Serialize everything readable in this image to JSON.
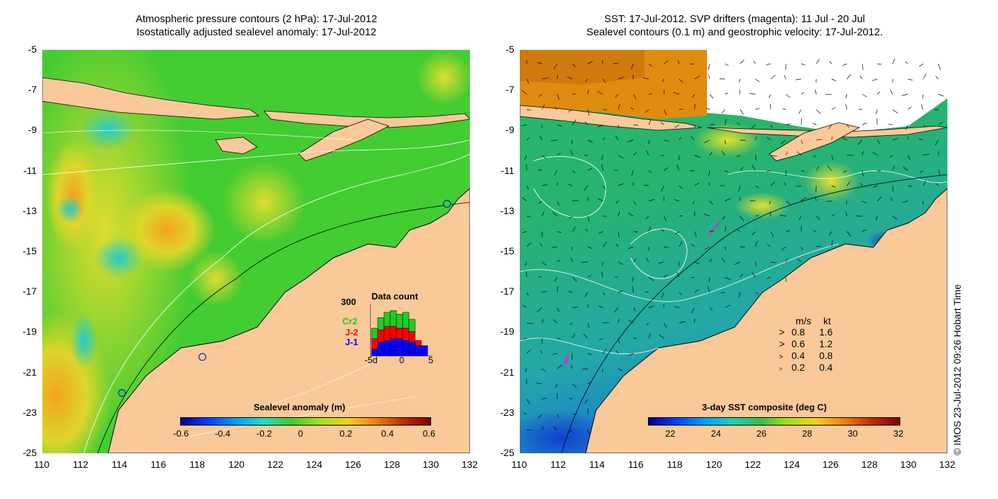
{
  "left_panel": {
    "title_line1": "Atmospheric pressure contours (2 hPa): 17-Jul-2012",
    "title_line2": "Isostatically adjusted sealevel anomaly: 17-Jul-2012",
    "x_ticks": [
      "110",
      "112",
      "114",
      "116",
      "118",
      "120",
      "122",
      "124",
      "126",
      "128",
      "130",
      "132"
    ],
    "y_ticks": [
      "-5",
      "-7",
      "-9",
      "-11",
      "-13",
      "-15",
      "-17",
      "-19",
      "-21",
      "-23",
      "-25"
    ],
    "colorbar": {
      "label": "Sealevel anomaly (m)",
      "ticks": [
        "-0.6",
        "-0.4",
        "-0.2",
        "0",
        "0.2",
        "0.4",
        "0.6"
      ],
      "range": [
        -0.6,
        0.6
      ]
    },
    "data_count": {
      "title": "Data count",
      "ymax_label": "300",
      "series_labels": [
        "Cr2",
        "J-2",
        "J-1"
      ],
      "series_colors": [
        "#22cc22",
        "#ff0000",
        "#0000ff"
      ],
      "x_ticks": [
        "-5d",
        "0",
        "5"
      ],
      "bars": [
        {
          "j1": 40,
          "j2": 60,
          "cr2": 60
        },
        {
          "j1": 80,
          "j2": 70,
          "cr2": 70
        },
        {
          "j1": 90,
          "j2": 80,
          "cr2": 80
        },
        {
          "j1": 100,
          "j2": 70,
          "cr2": 90
        },
        {
          "j1": 100,
          "j2": 60,
          "cr2": 80
        },
        {
          "j1": 90,
          "j2": 70,
          "cr2": 90
        },
        {
          "j1": 80,
          "j2": 60,
          "cr2": 70
        },
        {
          "j1": 60,
          "j2": 30,
          "cr2": 0
        },
        {
          "j1": 60,
          "j2": 0,
          "cr2": 0
        }
      ]
    }
  },
  "right_panel": {
    "title_line1": "SST: 17-Jul-2012. SVP drifters (magenta): 11 Jul - 20 Jul",
    "title_line2": "Sealevel contours (0.1 m) and geostrophic velocity: 17-Jul-2012.",
    "x_ticks": [
      "110",
      "112",
      "114",
      "116",
      "118",
      "120",
      "122",
      "124",
      "126",
      "128",
      "130",
      "132"
    ],
    "y_ticks": [
      "-5",
      "-7",
      "-9",
      "-11",
      "-13",
      "-15",
      "-17",
      "-19",
      "-21",
      "-23",
      "-25"
    ],
    "colorbar": {
      "label": "3-day SST composite (deg C)",
      "ticks": [
        "22",
        "24",
        "26",
        "28",
        "30",
        "32"
      ],
      "range": [
        21,
        32
      ]
    },
    "velocity_key": {
      "header_ms": "m/s",
      "header_kt": "kt",
      "rows": [
        {
          "ms": "0.8",
          "kt": "1.6"
        },
        {
          "ms": "0.6",
          "kt": "1.2"
        },
        {
          "ms": "0.4",
          "kt": "0.8"
        },
        {
          "ms": "0.2",
          "kt": "0.4"
        }
      ]
    }
  },
  "credit": "© IMOS 23-Jul-2012 09:26 Hobart Time",
  "colors": {
    "land": "#f9c99a",
    "sla_green": "#44cc33",
    "sla_yellow": "#cfe02a",
    "sla_orange": "#f0b020",
    "sst_green": "#33bb55",
    "sst_teal": "#22a9a0",
    "sst_blue": "#1566dd",
    "sst_orange": "#e08c10"
  }
}
